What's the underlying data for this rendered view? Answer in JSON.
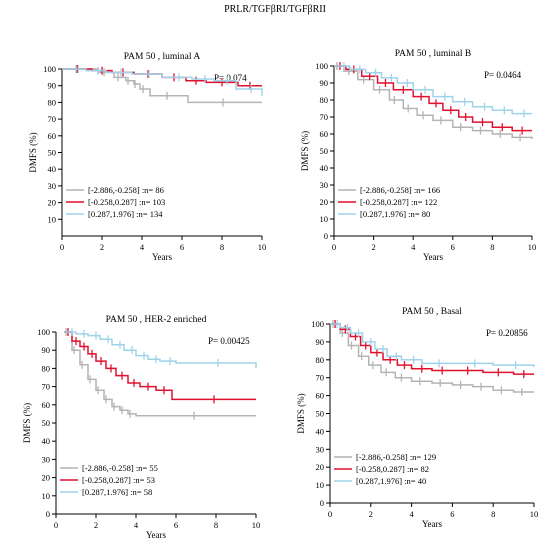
{
  "title": "PRLR/TGFβRI/TGFβRII",
  "chart_data": [
    {
      "type": "line",
      "title": "PAM 50 , luminal A",
      "xlabel": "Years",
      "ylabel": "DMFS (%)",
      "xlim": [
        0,
        10
      ],
      "ylim": [
        0,
        100
      ],
      "xticks": [
        0,
        2,
        4,
        6,
        8,
        10
      ],
      "yticks": [
        10,
        20,
        30,
        40,
        50,
        60,
        70,
        80,
        90,
        100
      ],
      "p_value": "P= 0.074",
      "legend_position": "bottom-left",
      "series": [
        {
          "name": "[-2.886,-0.258] :n= 86",
          "color": "#b4b4b4",
          "x": [
            0,
            1.8,
            2.6,
            3.2,
            3.6,
            3.9,
            4.4,
            6.3,
            10
          ],
          "y": [
            100,
            98,
            95,
            93,
            91,
            88,
            84,
            80,
            80
          ]
        },
        {
          "name": "[-0.258,0.287] :n= 103",
          "color": "#e0102f",
          "x": [
            0,
            1.5,
            2.5,
            3.6,
            5.0,
            6.2,
            7.2,
            8.8,
            10
          ],
          "y": [
            100,
            99,
            98,
            97,
            95,
            93,
            92,
            90,
            90
          ]
        },
        {
          "name": "[0.287,1.976]   :n= 134",
          "color": "#9fd3ea",
          "x": [
            0,
            1.2,
            2.2,
            3.5,
            5.0,
            6.5,
            7.6,
            8.7,
            10
          ],
          "y": [
            100,
            99,
            98,
            97,
            95,
            94,
            93,
            88,
            84
          ]
        }
      ]
    },
    {
      "type": "line",
      "title": "PAM 50 , luminal B",
      "xlabel": "Years",
      "ylabel": "DMFS (%)",
      "xlim": [
        0,
        10
      ],
      "ylim": [
        0,
        100
      ],
      "xticks": [
        0,
        2,
        4,
        6,
        8,
        10
      ],
      "yticks": [
        0,
        10,
        20,
        30,
        40,
        50,
        60,
        70,
        80,
        90,
        100
      ],
      "p_value": "P= 0.0464",
      "legend_position": "bottom-left",
      "series": [
        {
          "name": "[-2.886,-0.258] :n= 166",
          "color": "#b4b4b4",
          "x": [
            0,
            0.5,
            1.2,
            2.0,
            2.8,
            3.5,
            4.2,
            5.0,
            6.0,
            7.0,
            8.0,
            9.0,
            10
          ],
          "y": [
            100,
            97,
            92,
            86,
            80,
            75,
            71,
            68,
            64,
            62,
            60,
            58,
            57
          ]
        },
        {
          "name": "[-0.258,0.287] :n= 122",
          "color": "#e0102f",
          "x": [
            0,
            0.6,
            1.4,
            2.2,
            3.0,
            4.0,
            4.8,
            5.5,
            6.3,
            7.0,
            8.0,
            9.0,
            10
          ],
          "y": [
            100,
            98,
            94,
            90,
            86,
            82,
            78,
            74,
            70,
            67,
            64,
            62,
            62
          ]
        },
        {
          "name": "[0.287,1.976]   :n= 80",
          "color": "#9fd3ea",
          "x": [
            0,
            0.8,
            1.6,
            2.4,
            3.2,
            4.0,
            5.0,
            6.0,
            7.0,
            8.0,
            9.0,
            10
          ],
          "y": [
            100,
            98,
            96,
            93,
            90,
            86,
            82,
            79,
            76,
            74,
            72,
            72
          ]
        }
      ]
    },
    {
      "type": "line",
      "title": "PAM 50 , HER-2 enriched",
      "xlabel": "Years",
      "ylabel": "DMFS (%)",
      "xlim": [
        0,
        10
      ],
      "ylim": [
        0,
        100
      ],
      "xticks": [
        0,
        2,
        4,
        6,
        8,
        10
      ],
      "yticks": [
        0,
        10,
        20,
        30,
        40,
        50,
        60,
        70,
        80,
        90,
        100
      ],
      "p_value": "P= 0.00425",
      "legend_position": "bottom-left",
      "series": [
        {
          "name": "[-2.886,-0.258] :n= 55",
          "color": "#b4b4b4",
          "x": [
            0.4,
            0.8,
            1.2,
            1.6,
            2.0,
            2.4,
            2.8,
            3.2,
            3.6,
            4.0,
            10
          ],
          "y": [
            100,
            90,
            82,
            74,
            68,
            63,
            59,
            57,
            55,
            54,
            54
          ]
        },
        {
          "name": "[-0.258,0.287] :n= 53",
          "color": "#e0102f",
          "x": [
            0.4,
            0.8,
            1.2,
            1.6,
            2.0,
            2.5,
            3.0,
            3.6,
            4.2,
            5.0,
            5.8,
            10
          ],
          "y": [
            100,
            95,
            92,
            88,
            84,
            80,
            76,
            72,
            70,
            68,
            63,
            63
          ]
        },
        {
          "name": "[0.287,1.976]   :n= 58",
          "color": "#9fd3ea",
          "x": [
            0.4,
            1.0,
            1.6,
            2.2,
            2.8,
            3.4,
            4.0,
            4.6,
            5.2,
            6.0,
            10
          ],
          "y": [
            100,
            99,
            98,
            96,
            93,
            90,
            87,
            85,
            84,
            83,
            80
          ]
        }
      ]
    },
    {
      "type": "line",
      "title": "PAM 50 , Basal",
      "xlabel": "Years",
      "ylabel": "DMFS (%)",
      "xlim": [
        0,
        10
      ],
      "ylim": [
        0,
        100
      ],
      "xticks": [
        0,
        2,
        4,
        6,
        8,
        10
      ],
      "yticks": [
        0,
        10,
        20,
        30,
        40,
        50,
        60,
        70,
        80,
        90,
        100
      ],
      "p_value": "P= 0.20856",
      "legend_position": "bottom-left",
      "series": [
        {
          "name": "[-2.886,-0.258] :n= 129",
          "color": "#b4b4b4",
          "x": [
            0,
            0.5,
            0.9,
            1.4,
            1.9,
            2.5,
            3.2,
            4.0,
            5.0,
            6.0,
            7.0,
            8.0,
            9.0,
            10
          ],
          "y": [
            100,
            95,
            88,
            82,
            77,
            73,
            70,
            68,
            67,
            66,
            65,
            63,
            62,
            62
          ]
        },
        {
          "name": "[-0.258,0.287] :n= 82",
          "color": "#e0102f",
          "x": [
            0,
            0.5,
            1.0,
            1.5,
            2.0,
            2.6,
            3.3,
            4.0,
            5.0,
            6.0,
            7.5,
            9.0,
            10
          ],
          "y": [
            100,
            97,
            93,
            88,
            84,
            80,
            77,
            75,
            74,
            74,
            73,
            72,
            72
          ]
        },
        {
          "name": "[0.287,1.976]   :n= 40",
          "color": "#9fd3ea",
          "x": [
            0,
            0.5,
            1.0,
            1.6,
            2.2,
            2.8,
            3.5,
            4.5,
            6.0,
            8.0,
            10
          ],
          "y": [
            100,
            98,
            95,
            90,
            86,
            82,
            80,
            78,
            78,
            77,
            76
          ]
        }
      ]
    }
  ]
}
